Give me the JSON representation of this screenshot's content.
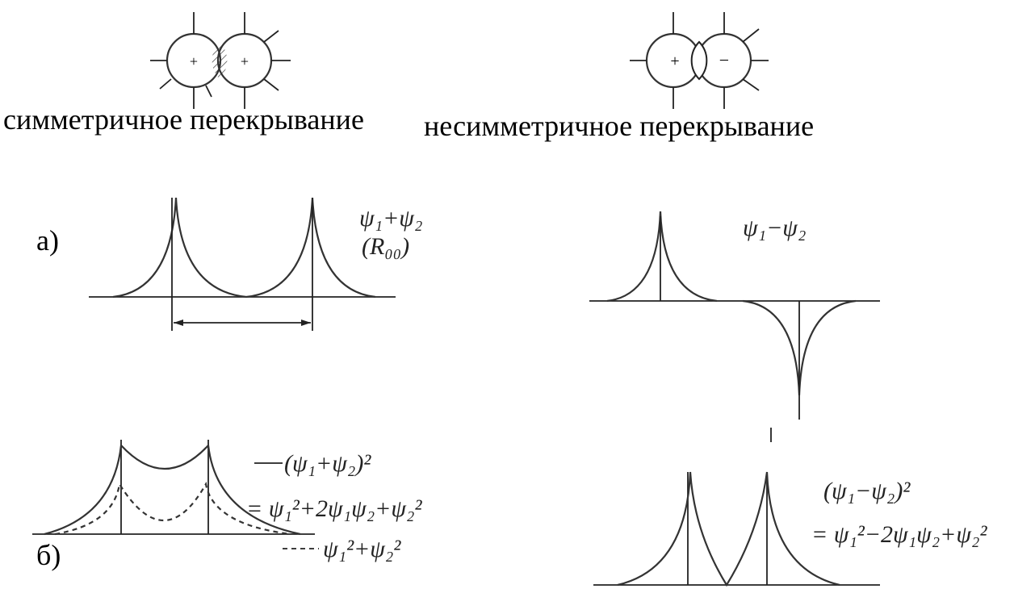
{
  "captions": {
    "symmetric": "симметричное перекрывание",
    "antisymmetric": "несимметричное перекрывание"
  },
  "panel_a": {
    "label": "а)",
    "left_formula": "ψ₁+ψ₂",
    "left_note": "(R₀₀)",
    "right_formula": "ψ₁−ψ₂"
  },
  "panel_b": {
    "label": "б)",
    "left_square": "(ψ₁+ψ₂)²",
    "left_expansion": "= ψ₁²+2ψ₁ψ₂+ψ₂²",
    "left_sum": "ψ₁²+ψ₂²",
    "right_square": "(ψ₁−ψ₂)²",
    "right_expansion": "= ψ₁²−2ψ₁ψ₂+ψ₂²"
  }
}
